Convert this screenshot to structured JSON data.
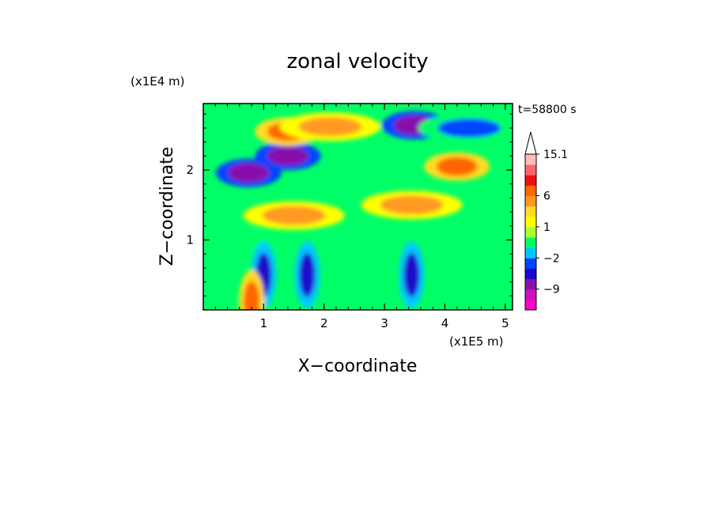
{
  "chart_data": {
    "type": "heatmap",
    "title": "zonal velocity",
    "xlabel": "X−coordinate",
    "ylabel": "Z−coordinate",
    "x_scale_label": "(x1E5 m)",
    "y_scale_label": "(x1E4 m)",
    "time_label": "t=58800 s",
    "xlim": [
      0,
      5.12
    ],
    "ylim": [
      0,
      2.95
    ],
    "x_ticks": [
      1,
      2,
      3,
      4,
      5
    ],
    "y_ticks": [
      1,
      2
    ],
    "colorbar": {
      "levels": [
        -15,
        -12,
        -9,
        -6,
        -3,
        -2,
        -1,
        0,
        1,
        2,
        3,
        6,
        9,
        12,
        15.1
      ],
      "colors": [
        "#ff00cc",
        "#cc11bb",
        "#8811aa",
        "#1a0acc",
        "#0044ff",
        "#00c8ff",
        "#00ff66",
        "#aaff33",
        "#ffff00",
        "#ffdd22",
        "#ff9922",
        "#ff6600",
        "#ee1111",
        "#ff6666",
        "#ffbbbb"
      ],
      "tick_labels": [
        "15.1",
        "6",
        "1",
        "−2",
        "−9"
      ],
      "tick_values": [
        15.1,
        6,
        1,
        -2,
        -9
      ],
      "extend": "max"
    },
    "field_features": [
      {
        "x": 0.75,
        "z": 1.96,
        "value": -9
      },
      {
        "x": 1.4,
        "z": 2.2,
        "value": -9
      },
      {
        "x": 3.5,
        "z": 2.64,
        "value": -9
      },
      {
        "x": 4.4,
        "z": 2.6,
        "value": -3
      },
      {
        "x": 1.4,
        "z": 2.55,
        "value": 6
      },
      {
        "x": 2.1,
        "z": 2.62,
        "value": 3
      },
      {
        "x": 4.2,
        "z": 2.05,
        "value": 6
      },
      {
        "x": 3.45,
        "z": 1.5,
        "value": 3
      },
      {
        "x": 1.5,
        "z": 1.35,
        "value": 3
      },
      {
        "x": 0.2,
        "z": 1.0,
        "value": -1
      },
      {
        "x": 4.6,
        "z": 0.9,
        "value": -1
      },
      {
        "x": 1.0,
        "z": 0.5,
        "value": -6
      },
      {
        "x": 1.72,
        "z": 0.5,
        "value": -6
      },
      {
        "x": 3.45,
        "z": 0.5,
        "value": -6
      },
      {
        "x": 0.8,
        "z": 0.1,
        "value": 6
      }
    ]
  }
}
